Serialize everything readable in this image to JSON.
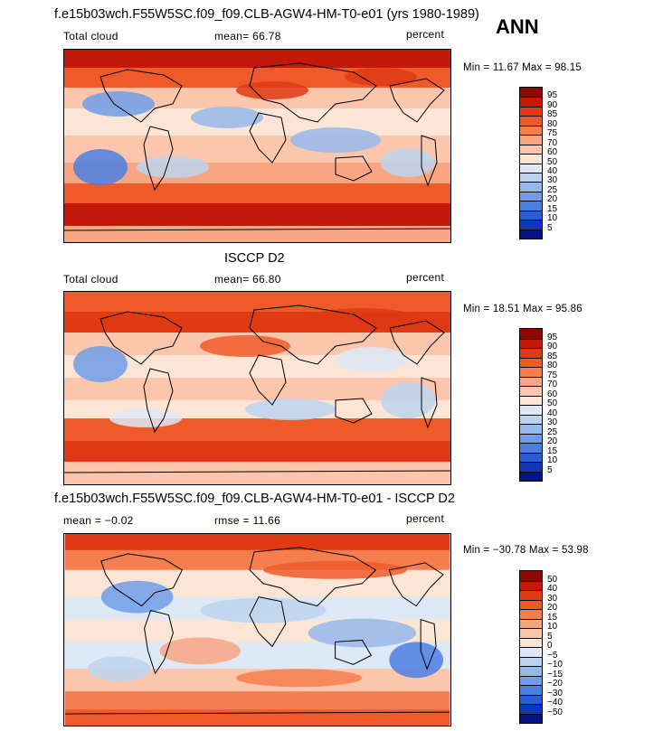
{
  "case_title": "f.e15b03wch.F55W5SC.f09_f09.CLB-AGW4-HM-T0-e01 (yrs 1980-1989)",
  "season": "ANN",
  "panels": [
    {
      "left_label": "Total cloud",
      "mid_label": "mean=  66.78",
      "units": "percent",
      "minmax": "Min =  11.67 Max =  98.15"
    },
    {
      "header": "ISCCP D2",
      "left_label": "Total cloud",
      "mid_label": "mean=  66.80",
      "units": "percent",
      "minmax": "Min =  18.51 Max =  95.86"
    },
    {
      "header": "f.e15b03wch.F55W5SC.f09_f09.CLB-AGW4-HM-T0-e01 - ISCCP D2",
      "left_label": "mean =  −0.02",
      "mid_label": "rmse =  11.66",
      "units": "percent",
      "minmax": "Min = −30.78 Max =  53.98"
    }
  ],
  "chart_data": [
    {
      "type": "heatmap",
      "title": "f.e15b03wch.F55W5SC.f09_f09.CLB-AGW4-HM-T0-e01 (yrs 1980-1989)",
      "variable": "Total cloud",
      "units": "percent",
      "mean": 66.78,
      "min": 11.67,
      "max": 98.15,
      "colorbar_levels": [
        "95",
        "90",
        "85",
        "80",
        "75",
        "70",
        "60",
        "50",
        "40",
        "30",
        "25",
        "20",
        "15",
        "10",
        "5"
      ],
      "colorbar_colors": [
        "#8b0a00",
        "#c4190a",
        "#df3a14",
        "#ee5a2a",
        "#f57e4e",
        "#f9a582",
        "#fbc6ab",
        "#fde5d6",
        "#dde9f6",
        "#bcd3ef",
        "#96b9eb",
        "#6f9ee8",
        "#4a7fe2",
        "#2a5cd6",
        "#1236b8",
        "#05138a"
      ]
    },
    {
      "type": "heatmap",
      "title": "ISCCP D2",
      "variable": "Total cloud",
      "units": "percent",
      "mean": 66.8,
      "min": 18.51,
      "max": 95.86,
      "colorbar_levels": [
        "95",
        "90",
        "85",
        "80",
        "75",
        "70",
        "60",
        "50",
        "40",
        "30",
        "25",
        "20",
        "15",
        "10",
        "5"
      ],
      "colorbar_colors": [
        "#8b0a00",
        "#c4190a",
        "#df3a14",
        "#ee5a2a",
        "#f57e4e",
        "#f9a582",
        "#fbc6ab",
        "#fde5d6",
        "#dde9f6",
        "#bcd3ef",
        "#96b9eb",
        "#6f9ee8",
        "#4a7fe2",
        "#2a5cd6",
        "#1236b8",
        "#05138a"
      ]
    },
    {
      "type": "heatmap",
      "title": "f.e15b03wch.F55W5SC.f09_f09.CLB-AGW4-HM-T0-e01 - ISCCP D2",
      "variable": "Total cloud difference",
      "units": "percent",
      "mean": -0.02,
      "rmse": 11.66,
      "min": -30.78,
      "max": 53.98,
      "colorbar_levels": [
        "50",
        "40",
        "30",
        "20",
        "15",
        "10",
        "5",
        "0",
        "−5",
        "−10",
        "−15",
        "−20",
        "−30",
        "−40",
        "−50"
      ],
      "colorbar_colors": [
        "#8b0a00",
        "#c4190a",
        "#df3a14",
        "#ee5a2a",
        "#f57e4e",
        "#f9a582",
        "#fbc6ab",
        "#fde5d6",
        "#dde9f6",
        "#bcd3ef",
        "#96b9eb",
        "#6f9ee8",
        "#4a7fe2",
        "#2a5cd6",
        "#1236b8",
        "#05138a"
      ]
    }
  ]
}
